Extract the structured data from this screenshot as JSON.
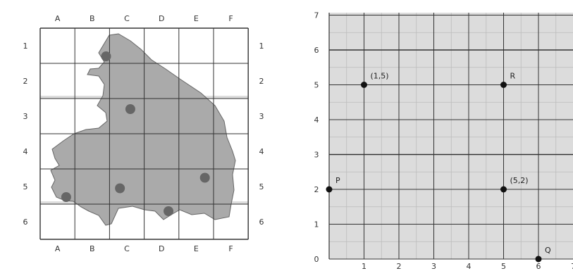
{
  "left_map": {
    "column_labels": [
      "A",
      "B",
      "C",
      "D",
      "E",
      "F"
    ],
    "row_labels_left": [
      "1",
      "2",
      "3",
      "4",
      "5",
      "6"
    ],
    "row_labels_right": [
      "1",
      "2",
      "3",
      "4",
      "5",
      "6"
    ],
    "dots": [
      {
        "col": "B",
        "row": 1
      },
      {
        "col": "C",
        "row": 3
      },
      {
        "col": "C",
        "row": 5
      },
      {
        "col": "A",
        "row": 5
      },
      {
        "col": "D",
        "row": 6
      },
      {
        "col": "E",
        "row": 5
      }
    ],
    "colors": {
      "region_fill": "#aaaaaa",
      "dot": "#666666",
      "grid": "#333333",
      "band": "#dddddd"
    }
  },
  "right_grid": {
    "x_ticks": [
      "1",
      "2",
      "3",
      "4",
      "5",
      "6",
      "7"
    ],
    "y_ticks": [
      "0",
      "1",
      "2",
      "3",
      "4",
      "5",
      "6",
      "7"
    ],
    "points": [
      {
        "label": "(1,5)",
        "x": 1,
        "y": 5
      },
      {
        "label": "R",
        "x": 5,
        "y": 5
      },
      {
        "label": "P",
        "x": 0,
        "y": 2
      },
      {
        "label": "(5,2)",
        "x": 5,
        "y": 2
      },
      {
        "label": "Q",
        "x": 6,
        "y": 0
      }
    ],
    "colors": {
      "background": "#dcdcdc",
      "grid": "#333333",
      "point": "#111111"
    }
  }
}
